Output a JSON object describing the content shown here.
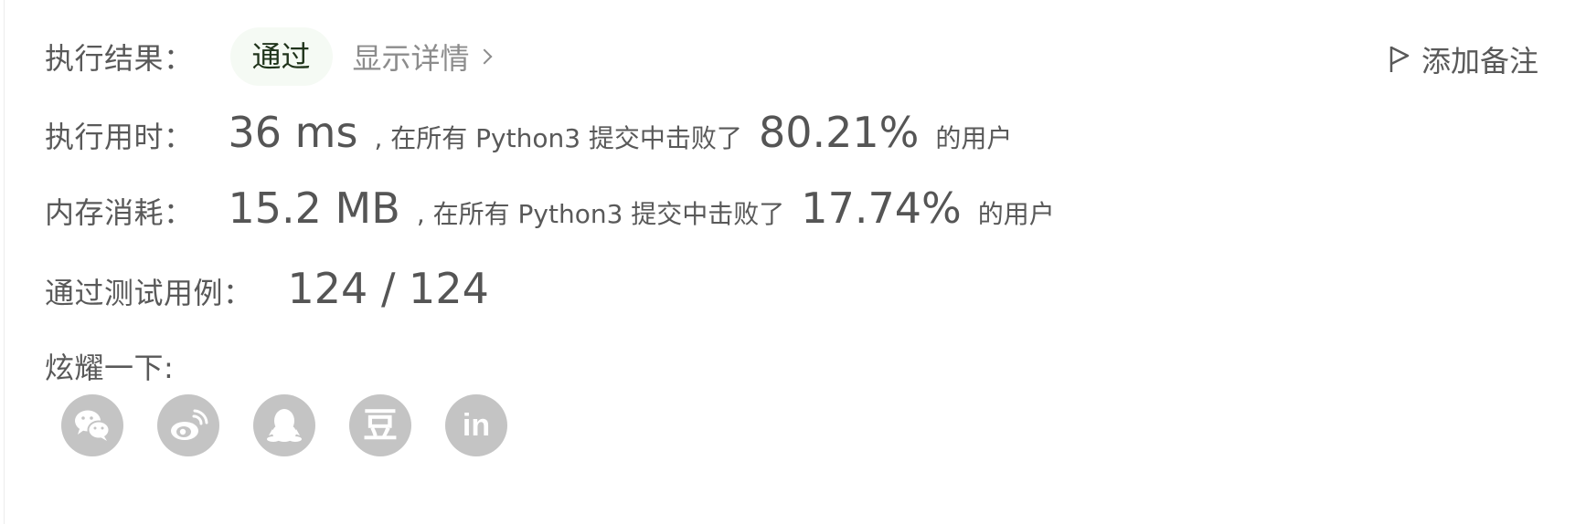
{
  "result": {
    "label": "执行结果：",
    "status": "通过",
    "detail_link": "显示详情",
    "add_note": "添加备注"
  },
  "runtime": {
    "label": "执行用时：",
    "value": "36 ms",
    "middle": ", 在所有 Python3 提交中击败了",
    "percent": "80.21%",
    "suffix": "的用户"
  },
  "memory": {
    "label": "内存消耗：",
    "value": "15.2 MB",
    "middle": ", 在所有 Python3 提交中击败了",
    "percent": "17.74%",
    "suffix": "的用户"
  },
  "tests": {
    "label": "通过测试用例：",
    "value": "124 / 124"
  },
  "share": {
    "label": "炫耀一下:",
    "icons": [
      "wechat-icon",
      "weibo-icon",
      "qq-icon",
      "douban-icon",
      "linkedin-icon"
    ],
    "douban_glyph": "豆",
    "linkedin_glyph": "in"
  },
  "colors": {
    "pass_badge_bg": "#f5faf4",
    "pass_text": "#1f331a",
    "icon_bg": "#c4c4c4"
  }
}
